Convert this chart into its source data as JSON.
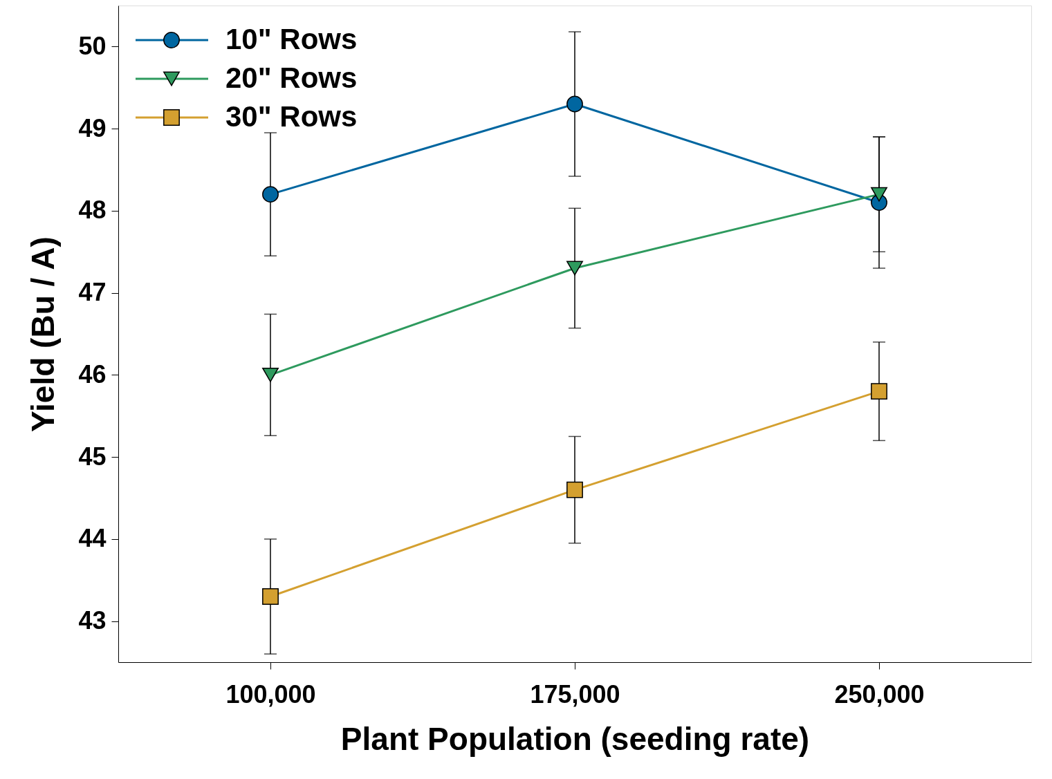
{
  "chart_data": {
    "type": "line",
    "xlabel": "Plant Population (seeding rate)",
    "ylabel": "Yield (Bu / A)",
    "x": [
      100000,
      175000,
      250000
    ],
    "xlim": [
      62500,
      287500
    ],
    "ylim": [
      42.5,
      50.5
    ],
    "xticks": [
      {
        "value": 100000,
        "label": "100,000"
      },
      {
        "value": 175000,
        "label": "175,000"
      },
      {
        "value": 250000,
        "label": "250,000"
      }
    ],
    "yticks": [
      {
        "value": 43,
        "label": "43"
      },
      {
        "value": 44,
        "label": "44"
      },
      {
        "value": 45,
        "label": "45"
      },
      {
        "value": 46,
        "label": "46"
      },
      {
        "value": 47,
        "label": "47"
      },
      {
        "value": 48,
        "label": "48"
      },
      {
        "value": 49,
        "label": "49"
      },
      {
        "value": 50,
        "label": "50"
      }
    ],
    "grid": false,
    "legend": "top left",
    "line_style": "solid",
    "series": [
      {
        "name": "10\" Rows",
        "color": "#0066a0",
        "marker": "circle",
        "values": [
          48.2,
          49.3,
          48.1
        ],
        "errors": [
          0.75,
          0.88,
          0.8
        ]
      },
      {
        "name": "20\" Rows",
        "color": "#2e9a5e",
        "marker": "triangle",
        "values": [
          46.0,
          47.3,
          48.2
        ],
        "errors": [
          0.74,
          0.73,
          0.7
        ]
      },
      {
        "name": "30\" Rows",
        "color": "#d4a030",
        "marker": "square",
        "values": [
          43.3,
          44.6,
          45.8
        ],
        "errors": [
          0.7,
          0.65,
          0.6
        ]
      }
    ]
  }
}
